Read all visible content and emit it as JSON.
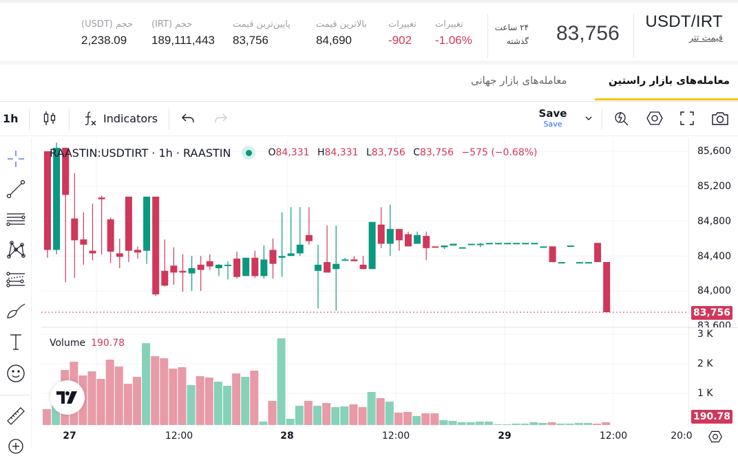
{
  "header": {
    "pair": "USDT/IRT",
    "pair_subtitle": "قیمت تتر",
    "last_price": "83,756",
    "period_line1": "۲۴ ساعت",
    "period_line2": "گذشته",
    "stats": [
      {
        "label": "تغییرات",
        "value": "-1.06%",
        "negative": true
      },
      {
        "label": "تغییرات",
        "value": "-902",
        "negative": true
      },
      {
        "label": "بالاترین قیمت",
        "value": "84,690",
        "negative": false
      },
      {
        "label": "پایین‌ترین قیمت",
        "value": "83,756",
        "negative": false
      },
      {
        "label": "حجم (IRT)",
        "value": "189,111,443",
        "negative": false
      },
      {
        "label": "حجم (USDT)",
        "value": "2,238.09",
        "negative": false
      }
    ]
  },
  "tabs": [
    {
      "label": "معامله‌های بازار راستین",
      "active": true
    },
    {
      "label": "معامله‌های بازار جهانی",
      "active": false
    }
  ],
  "toolbar": {
    "interval": "1h",
    "indicators_label": "Indicators",
    "save_label": "Save",
    "save_sub_label": "Save"
  },
  "chart": {
    "symbol_title": "RAASTIN:USDTIRT · 1h · RAASTIN",
    "ohlc": {
      "O": "84,331",
      "H": "84,331",
      "L": "83,756",
      "C": "83,756",
      "change": "−575 (−0.68%)"
    },
    "volume_label": "Volume",
    "volume_value": "190.78",
    "price_ticks": [
      "85,600",
      "85,200",
      "84,800",
      "84,400",
      "84,000",
      "83,600"
    ],
    "current_price_tag": "83,756",
    "volume_ticks": [
      "3 K",
      "2 K",
      "1 K"
    ],
    "current_volume_tag": "190.78",
    "x_ticks": [
      {
        "label": "27",
        "bold": true
      },
      {
        "label": "12:00",
        "bold": false
      },
      {
        "label": "28",
        "bold": true
      },
      {
        "label": "12:00",
        "bold": false
      },
      {
        "label": "29",
        "bold": true
      },
      {
        "label": "12:00",
        "bold": false
      },
      {
        "label": "20:0",
        "bold": false
      }
    ],
    "colors": {
      "up": "#089981",
      "down": "#d0375a",
      "up_vol": "#86d2b8",
      "down_vol": "#e89aa6",
      "accent": "#f5c400"
    }
  }
}
